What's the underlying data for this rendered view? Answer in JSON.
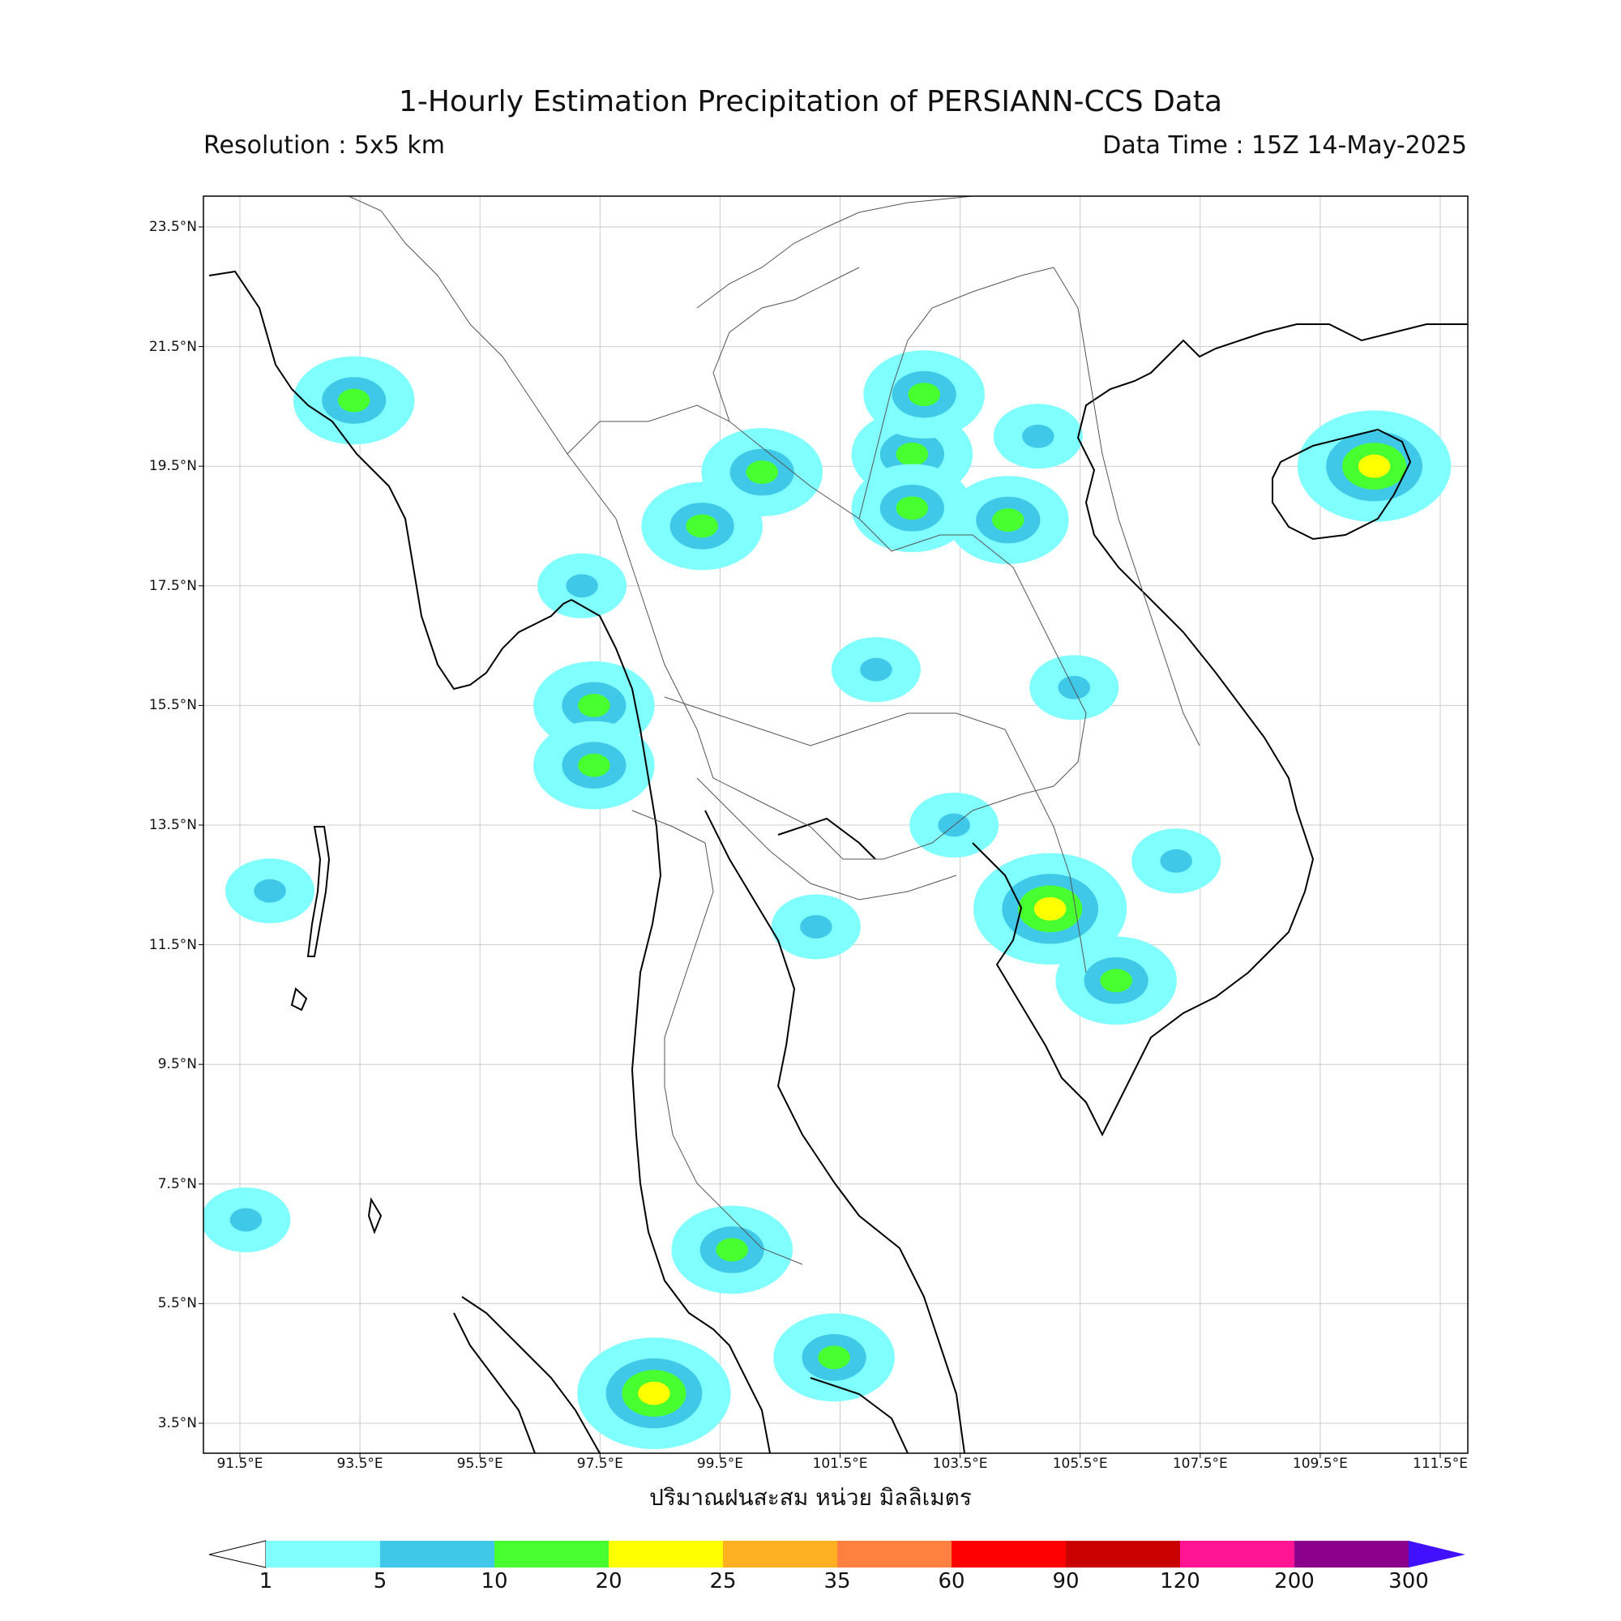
{
  "title": "1-Hourly Estimation Precipitation of PERSIANN-CCS Data",
  "resolution": "Resolution : 5x5 km",
  "data_time": "Data Time : 15Z 14-May-2025",
  "xaxis_label": "ปริมาณฝนสะสม หน่วย มิลลิเมตร",
  "lon_ticks": [
    "91.5°E",
    "93.5°E",
    "95.5°E",
    "97.5°E",
    "99.5°E",
    "101.5°E",
    "103.5°E",
    "105.5°E",
    "107.5°E",
    "109.5°E",
    "111.5°E"
  ],
  "lat_ticks": [
    "23.5°N",
    "21.5°N",
    "19.5°N",
    "17.5°N",
    "15.5°N",
    "13.5°N",
    "11.5°N",
    "9.5°N",
    "7.5°N",
    "5.5°N",
    "3.5°N"
  ],
  "colorbar": {
    "labels": [
      "1",
      "5",
      "10",
      "20",
      "25",
      "35",
      "60",
      "90",
      "120",
      "200",
      "300"
    ],
    "colors": [
      "#80ffff",
      "#40c8e8",
      "#48ff30",
      "#ffff00",
      "#ffb020",
      "#ff8040",
      "#ff0000",
      "#c80000",
      "#ff1493",
      "#8b008b",
      "#4010ff"
    ]
  },
  "rain_cells": [
    {
      "lon": 99.7,
      "lat": 6.4,
      "level": 2
    },
    {
      "lon": 105.0,
      "lat": 12.1,
      "level": 3
    },
    {
      "lon": 97.4,
      "lat": 15.5,
      "level": 2
    },
    {
      "lon": 107.1,
      "lat": 12.9,
      "level": 1
    },
    {
      "lon": 101.1,
      "lat": 11.8,
      "level": 1
    },
    {
      "lon": 98.4,
      "lat": 4.0,
      "level": 3
    },
    {
      "lon": 110.4,
      "lat": 19.5,
      "level": 3
    },
    {
      "lon": 102.7,
      "lat": 19.7,
      "level": 2
    },
    {
      "lon": 102.7,
      "lat": 18.8,
      "level": 2
    },
    {
      "lon": 106.1,
      "lat": 10.9,
      "level": 2
    },
    {
      "lon": 105.4,
      "lat": 15.8,
      "level": 1
    },
    {
      "lon": 99.2,
      "lat": 18.5,
      "level": 2
    },
    {
      "lon": 100.2,
      "lat": 19.4,
      "level": 2
    },
    {
      "lon": 93.4,
      "lat": 20.6,
      "level": 2
    },
    {
      "lon": 104.3,
      "lat": 18.6,
      "level": 2
    },
    {
      "lon": 101.4,
      "lat": 4.6,
      "level": 2
    },
    {
      "lon": 97.2,
      "lat": 17.5,
      "level": 1
    },
    {
      "lon": 92.0,
      "lat": 12.4,
      "level": 1
    },
    {
      "lon": 91.6,
      "lat": 6.9,
      "level": 1
    },
    {
      "lon": 97.4,
      "lat": 14.5,
      "level": 2
    },
    {
      "lon": 102.9,
      "lat": 20.7,
      "level": 2
    },
    {
      "lon": 104.8,
      "lat": 20.0,
      "level": 1
    },
    {
      "lon": 103.4,
      "lat": 13.5,
      "level": 1
    },
    {
      "lon": 102.1,
      "lat": 16.1,
      "level": 1
    }
  ]
}
